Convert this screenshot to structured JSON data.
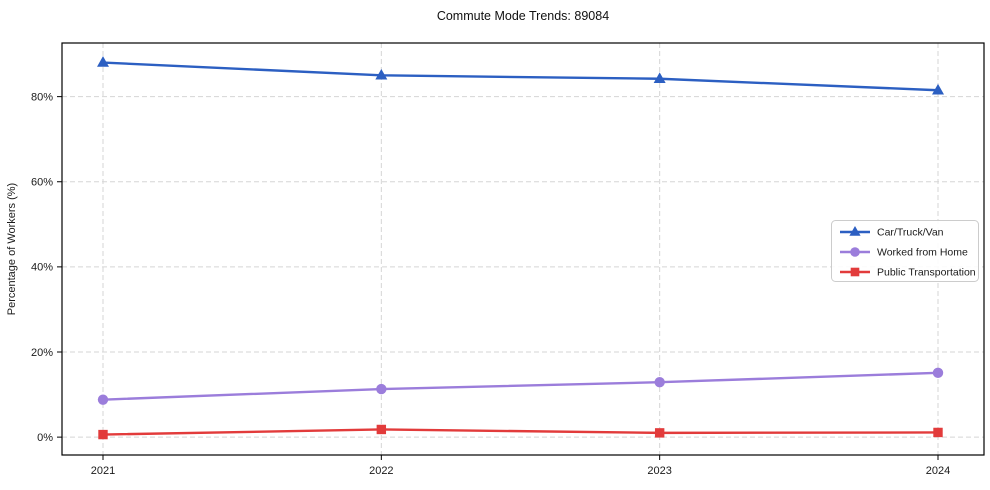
{
  "figure": {
    "background": "#ffffff"
  },
  "chart_data": {
    "type": "line",
    "title": "Commute Mode Trends: 89084",
    "xlabel": "",
    "ylabel": "Percentage of Workers (%)",
    "categories": [
      "2021",
      "2022",
      "2023",
      "2024"
    ],
    "series": [
      {
        "name": "Car/Truck/Van",
        "marker": "triangle",
        "color": "#2c5fc2",
        "values": [
          88.0,
          85.0,
          84.2,
          81.5
        ]
      },
      {
        "name": "Worked from Home",
        "marker": "circle",
        "color": "#9b7ddb",
        "values": [
          8.8,
          11.3,
          12.9,
          15.1
        ]
      },
      {
        "name": "Public Transportation",
        "marker": "square",
        "color": "#e23b3b",
        "values": [
          0.6,
          1.8,
          1.0,
          1.1
        ]
      }
    ],
    "yticks": [
      0,
      20,
      40,
      60,
      80
    ],
    "ytick_labels": [
      "0%",
      "20%",
      "40%",
      "60%",
      "80%"
    ],
    "ylim": [
      -4.2,
      92.6
    ],
    "grid": true,
    "grid_style": "dashed",
    "grid_color": "#d5d5d5",
    "axis_color": "#000000",
    "legend_position": "center-right"
  }
}
